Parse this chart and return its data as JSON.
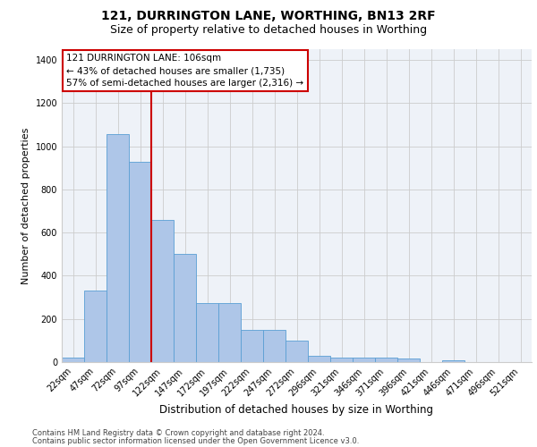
{
  "title_line1": "121, DURRINGTON LANE, WORTHING, BN13 2RF",
  "title_line2": "Size of property relative to detached houses in Worthing",
  "xlabel": "Distribution of detached houses by size in Worthing",
  "ylabel": "Number of detached properties",
  "footer_line1": "Contains HM Land Registry data © Crown copyright and database right 2024.",
  "footer_line2": "Contains public sector information licensed under the Open Government Licence v3.0.",
  "categories": [
    "22sqm",
    "47sqm",
    "72sqm",
    "97sqm",
    "122sqm",
    "147sqm",
    "172sqm",
    "197sqm",
    "222sqm",
    "247sqm",
    "272sqm",
    "296sqm",
    "321sqm",
    "346sqm",
    "371sqm",
    "396sqm",
    "421sqm",
    "446sqm",
    "471sqm",
    "496sqm",
    "521sqm"
  ],
  "values": [
    20,
    330,
    1055,
    930,
    660,
    500,
    275,
    275,
    150,
    150,
    100,
    30,
    20,
    20,
    20,
    15,
    0,
    10,
    0,
    0,
    0
  ],
  "bar_color": "#aec6e8",
  "bar_edge_color": "#5a9fd4",
  "red_line_x": 3.5,
  "property_label": "121 DURRINGTON LANE: 106sqm",
  "annotation_line2": "← 43% of detached houses are smaller (1,735)",
  "annotation_line3": "57% of semi-detached houses are larger (2,316) →",
  "ylim": [
    0,
    1450
  ],
  "yticks": [
    0,
    200,
    400,
    600,
    800,
    1000,
    1200,
    1400
  ],
  "grid_color": "#cccccc",
  "background_color": "#eef2f8",
  "annotation_box_color": "#ffffff",
  "annotation_box_edge": "#cc0000",
  "red_line_color": "#cc0000",
  "title1_fontsize": 10,
  "title2_fontsize": 9,
  "ylabel_fontsize": 8,
  "xlabel_fontsize": 8.5,
  "tick_fontsize": 7,
  "annotation_fontsize": 7.5,
  "footer_fontsize": 6
}
